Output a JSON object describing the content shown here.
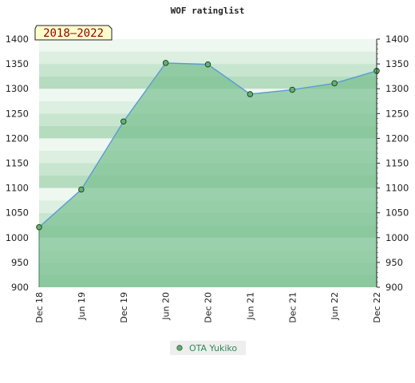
{
  "chart_data": {
    "type": "area",
    "title": "WOF ratinglist",
    "period_label": "2018–2022",
    "categories": [
      "Dec 18",
      "Jun 19",
      "Dec 19",
      "Jun 20",
      "Dec 20",
      "Jun 21",
      "Dec 21",
      "Jun 22",
      "Dec 22"
    ],
    "series": [
      {
        "name": "OTA Yukiko",
        "values": [
          1021,
          1097,
          1234,
          1352,
          1349,
          1289,
          1298,
          1311,
          1336
        ]
      }
    ],
    "ylim": [
      900,
      1400
    ],
    "yticks": [
      900,
      950,
      1000,
      1050,
      1100,
      1150,
      1200,
      1250,
      1300,
      1350,
      1400
    ],
    "legend_position": "bottom-center",
    "colors": {
      "line": "#5b9bd5",
      "marker": "#5fb36f",
      "area": "#7cc191",
      "legend_bg": "#eeeeee",
      "badge_bg": "#ffffcc"
    }
  }
}
